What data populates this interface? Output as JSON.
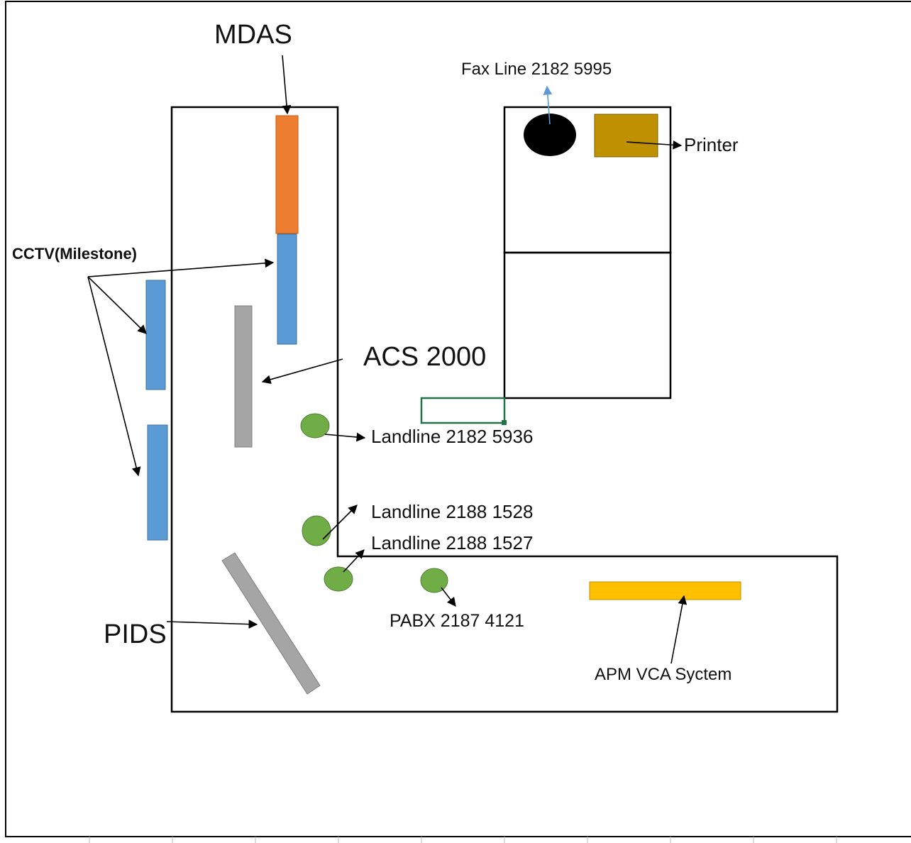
{
  "labels": {
    "mdas": "MDAS",
    "fax_line": "Fax Line 2182 5995",
    "printer": "Printer",
    "cctv": "CCTV(Milestone)",
    "acs": "ACS 2000",
    "landline_1": "Landline 2182 5936",
    "landline_2": "Landline 2188 1528",
    "landline_3": "Landline 2188 1527",
    "pabx": "PABX 2187 4121",
    "pids": "PIDS",
    "apm": "APM VCA Syctem"
  },
  "colors": {
    "mdas": "#ED7D31",
    "cctv": "#5B9BD5",
    "acs": "#A5A5A5",
    "pids": "#A5A5A5",
    "phone": "#70AD47",
    "fax": "#000000",
    "printer": "#BF9000",
    "apm": "#FFC000",
    "selection": "#217346",
    "fax_arrow": "#5B9BD5"
  }
}
